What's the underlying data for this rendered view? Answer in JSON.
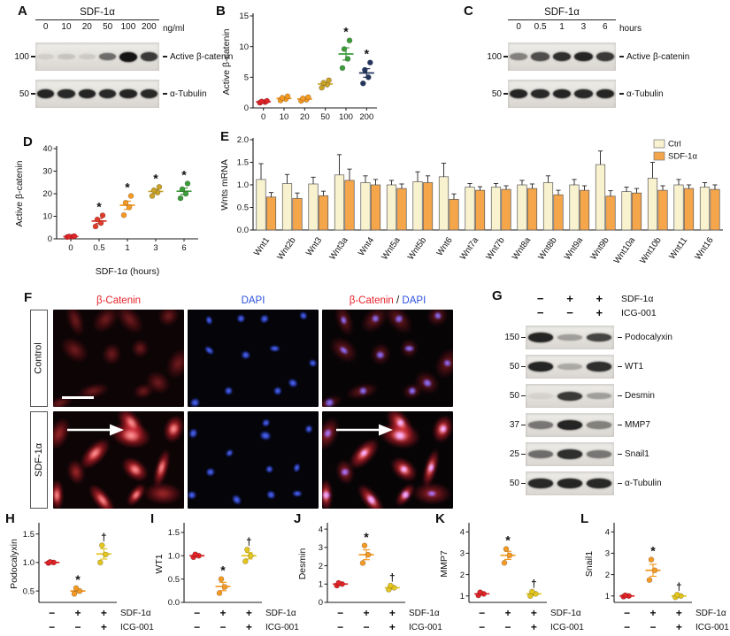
{
  "colors": {
    "label_red": "#e8232a",
    "label_blue": "#2b50e0",
    "ctrl_bar": "#f8f2cf",
    "sdf_bar": "#f5a54a"
  },
  "panel_a": {
    "label": "A",
    "title": "SDF-1α",
    "lanes": [
      "0",
      "10",
      "20",
      "50",
      "100",
      "200"
    ],
    "unit": "ng/ml",
    "rows": [
      {
        "marker": "100",
        "label": "Active β-catenin",
        "bands": [
          0.07,
          0.12,
          0.09,
          0.55,
          1.0,
          0.8
        ]
      },
      {
        "marker": "50",
        "label": "α-Tubulin",
        "bands": [
          0.9,
          0.88,
          0.9,
          0.88,
          0.9,
          0.88
        ]
      }
    ]
  },
  "panel_b": {
    "label": "B"
  },
  "panel_c": {
    "label": "C",
    "title": "SDF-1α",
    "lanes": [
      "0",
      "0.5",
      "1",
      "3",
      "6"
    ],
    "unit": "hours",
    "rows": [
      {
        "marker": "100",
        "label": "Active β-catenin",
        "bands": [
          0.45,
          0.7,
          0.85,
          0.9,
          0.8
        ]
      },
      {
        "marker": "50",
        "label": "α-Tubulin",
        "bands": [
          0.9,
          0.88,
          0.9,
          0.88,
          0.9
        ]
      }
    ]
  },
  "panel_d": {
    "label": "D"
  },
  "panel_e": {
    "label": "E"
  },
  "panel_f": {
    "label": "F",
    "headers": {
      "col1": "β-Catenin",
      "col2": "DAPI",
      "col3_1": "β-Catenin",
      "col3_sep": " / ",
      "col3_2": "DAPI"
    },
    "rows": [
      {
        "label": "Control"
      },
      {
        "label": "SDF-1α"
      }
    ]
  },
  "panel_g": {
    "label": "G",
    "conditions": [
      {
        "values": [
          "−",
          "+",
          "+"
        ],
        "label": "SDF-1α"
      },
      {
        "values": [
          "−",
          "−",
          "+"
        ],
        "label": "ICG-001"
      }
    ],
    "rows": [
      {
        "marker": "150",
        "label": "Podocalyxin",
        "bands": [
          0.9,
          0.3,
          0.75
        ]
      },
      {
        "marker": "50",
        "label": "WT1",
        "bands": [
          0.9,
          0.25,
          0.85
        ]
      },
      {
        "marker": "50",
        "label": "Desmin",
        "bands": [
          0.05,
          0.8,
          0.3
        ]
      },
      {
        "marker": "37",
        "label": "MMP7",
        "bands": [
          0.5,
          0.9,
          0.45
        ]
      },
      {
        "marker": "25",
        "label": "Snail1",
        "bands": [
          0.55,
          0.85,
          0.5
        ]
      },
      {
        "marker": "50",
        "label": "α-Tubulin",
        "bands": [
          0.88,
          0.9,
          0.88
        ]
      }
    ]
  },
  "panel_h": {
    "label": "H",
    "conditions": [
      {
        "values": [
          "−",
          "+",
          "+"
        ],
        "label": "SDF-1α"
      },
      {
        "values": [
          "−",
          "−",
          "+"
        ],
        "label": "ICG-001"
      }
    ]
  },
  "panel_i": {
    "label": "I",
    "conditions": [
      {
        "values": [
          "−",
          "+",
          "+"
        ],
        "label": "SDF-1α"
      },
      {
        "values": [
          "−",
          "−",
          "+"
        ],
        "label": "ICG-001"
      }
    ]
  },
  "panel_j": {
    "label": "J",
    "conditions": [
      {
        "values": [
          "−",
          "+",
          "+"
        ],
        "label": "SDF-1α"
      },
      {
        "values": [
          "−",
          "−",
          "+"
        ],
        "label": "ICG-001"
      }
    ]
  },
  "panel_k": {
    "label": "K",
    "conditions": [
      {
        "values": [
          "−",
          "+",
          "+"
        ],
        "label": "SDF-1α"
      },
      {
        "values": [
          "−",
          "−",
          "+"
        ],
        "label": "ICG-001"
      }
    ]
  },
  "panel_l": {
    "label": "L",
    "conditions": [
      {
        "values": [
          "−",
          "+",
          "+"
        ],
        "label": "SDF-1α"
      },
      {
        "values": [
          "−",
          "−",
          "+"
        ],
        "label": "ICG-001"
      }
    ]
  },
  "chart_data": [
    {
      "id": "B",
      "type": "scatter",
      "ylabel": "Active β-catenin",
      "ylim": [
        0,
        15
      ],
      "yticks": [
        0,
        5,
        10,
        15
      ],
      "ytick_labels": [
        "0",
        "5",
        "10",
        "15"
      ],
      "categories": [
        "0",
        "10",
        "20",
        "50",
        "100",
        "200"
      ],
      "groups": [
        {
          "color": "#e02427",
          "points": [
            0.85,
            0.95,
            1.05,
            1.15
          ],
          "mean": 1.0,
          "sem": 0.08,
          "sig": ""
        },
        {
          "color": "#f59a23",
          "points": [
            1.2,
            1.45,
            1.65,
            1.9
          ],
          "mean": 1.55,
          "sem": 0.15,
          "sig": ""
        },
        {
          "color": "#f59a23",
          "points": [
            1.15,
            1.35,
            1.55,
            1.75
          ],
          "mean": 1.45,
          "sem": 0.13,
          "sig": ""
        },
        {
          "color": "#c9a227",
          "points": [
            3.3,
            3.8,
            4.1,
            4.5
          ],
          "mean": 3.9,
          "sem": 0.26,
          "sig": ""
        },
        {
          "color": "#3d9c3a",
          "points": [
            6.5,
            8.0,
            9.6,
            11.0
          ],
          "mean": 8.8,
          "sem": 1.0,
          "sig": "*"
        },
        {
          "color": "#24365e",
          "points": [
            4.0,
            5.0,
            6.2,
            7.4
          ],
          "mean": 5.7,
          "sem": 0.7,
          "sig": "*"
        }
      ]
    },
    {
      "id": "D",
      "type": "scatter",
      "ylabel": "Active β-catenin",
      "xlabel": "SDF-1α (hours)",
      "ylim": [
        0,
        40
      ],
      "yticks": [
        0,
        10,
        20,
        30,
        40
      ],
      "ytick_labels": [
        "0",
        "10",
        "20",
        "30",
        "40"
      ],
      "categories": [
        "0",
        "0.5",
        "1",
        "3",
        "6"
      ],
      "groups": [
        {
          "color": "#e02427",
          "points": [
            0.8,
            0.95,
            1.05,
            1.2
          ],
          "mean": 1.0,
          "sem": 0.09,
          "sig": ""
        },
        {
          "color": "#e03a2a",
          "points": [
            5.5,
            7.0,
            8.6,
            10.4
          ],
          "mean": 7.9,
          "sem": 1.1,
          "sig": "*"
        },
        {
          "color": "#f59a23",
          "points": [
            10.5,
            14.0,
            16.0,
            19.0
          ],
          "mean": 14.9,
          "sem": 1.8,
          "sig": "*"
        },
        {
          "color": "#c9a227",
          "points": [
            19.0,
            20.5,
            21.5,
            23.0
          ],
          "mean": 21.0,
          "sem": 0.9,
          "sig": "*"
        },
        {
          "color": "#3d9c3a",
          "points": [
            18.0,
            20.0,
            22.0,
            24.5
          ],
          "mean": 21.1,
          "sem": 1.4,
          "sig": "*"
        }
      ]
    },
    {
      "id": "E",
      "type": "bar",
      "ylabel": "Wnts mRNA",
      "ylim": [
        0,
        2
      ],
      "yticks": [
        0,
        0.5,
        1,
        1.5,
        2
      ],
      "ytick_labels": [
        "0.0",
        "0.5",
        "1.0",
        "1.5",
        "2.0"
      ],
      "categories": [
        "Wnt1",
        "Wnt2b",
        "Wnt3",
        "Wnt3a",
        "Wnt4",
        "Wnt5a",
        "Wnt5b",
        "Wnt6",
        "Wnt7a",
        "Wnt7b",
        "Wnt8a",
        "Wnt8b",
        "Wnt9a",
        "Wnt9b",
        "Wnt10a",
        "Wnt10b",
        "Wnt11",
        "Wnt16"
      ],
      "legend_pos": "top-right",
      "series": [
        {
          "name": "Ctrl",
          "color": "#f8f2cf",
          "values": [
            1.12,
            1.03,
            1.02,
            1.22,
            1.05,
            1.0,
            1.07,
            1.18,
            0.95,
            0.95,
            1.0,
            1.05,
            1.0,
            1.45,
            0.85,
            1.15,
            1.0,
            0.95
          ],
          "errors": [
            0.35,
            0.2,
            0.15,
            0.45,
            0.15,
            0.1,
            0.22,
            0.3,
            0.08,
            0.08,
            0.1,
            0.15,
            0.12,
            0.3,
            0.1,
            0.35,
            0.12,
            0.1
          ]
        },
        {
          "name": "SDF-1α",
          "color": "#f5a54a",
          "values": [
            0.73,
            0.7,
            0.76,
            1.1,
            1.0,
            0.92,
            1.05,
            0.68,
            0.88,
            0.9,
            0.92,
            0.78,
            0.88,
            0.75,
            0.82,
            0.88,
            0.92,
            0.9
          ],
          "errors": [
            0.1,
            0.12,
            0.1,
            0.25,
            0.12,
            0.1,
            0.15,
            0.12,
            0.08,
            0.08,
            0.1,
            0.1,
            0.1,
            0.12,
            0.1,
            0.1,
            0.08,
            0.1
          ]
        }
      ]
    },
    {
      "id": "H",
      "type": "scatter",
      "ylabel": "Podocalyxin",
      "ylim": [
        0.3,
        1.65
      ],
      "yticks": [
        0.5,
        1.0,
        1.5
      ],
      "ytick_labels": [
        "0.5",
        "1.0",
        "1.5"
      ],
      "groups": [
        {
          "color": "#e02427",
          "points": [
            0.99,
            1.0,
            1.01
          ],
          "mean": 1.0,
          "sem": 0.02,
          "sig": ""
        },
        {
          "color": "#f59a23",
          "points": [
            0.45,
            0.5,
            0.55
          ],
          "mean": 0.5,
          "sem": 0.03,
          "sig": "*"
        },
        {
          "color": "#e3c51f",
          "points": [
            1.0,
            1.14,
            1.3
          ],
          "mean": 1.15,
          "sem": 0.09,
          "sig": "†"
        }
      ]
    },
    {
      "id": "I",
      "type": "scatter",
      "ylabel": "WT1",
      "ylim": [
        0,
        1.65
      ],
      "yticks": [
        0,
        0.5,
        1.0,
        1.5
      ],
      "ytick_labels": [
        "0.0",
        "0.5",
        "1.0",
        "1.5"
      ],
      "groups": [
        {
          "color": "#e02427",
          "points": [
            0.97,
            1.0,
            1.03
          ],
          "mean": 1.0,
          "sem": 0.02,
          "sig": ""
        },
        {
          "color": "#f59a23",
          "points": [
            0.2,
            0.33,
            0.5
          ],
          "mean": 0.34,
          "sem": 0.09,
          "sig": "*"
        },
        {
          "color": "#e3c51f",
          "points": [
            0.88,
            1.0,
            1.13
          ],
          "mean": 1.0,
          "sem": 0.07,
          "sig": "†"
        }
      ]
    },
    {
      "id": "J",
      "type": "scatter",
      "ylabel": "Desmin",
      "ylim": [
        0,
        4.2
      ],
      "yticks": [
        0,
        1,
        2,
        3,
        4
      ],
      "ytick_labels": [
        "0",
        "1",
        "2",
        "3",
        "4"
      ],
      "groups": [
        {
          "color": "#e02427",
          "points": [
            0.92,
            1.0,
            1.06
          ],
          "mean": 1.0,
          "sem": 0.04,
          "sig": ""
        },
        {
          "color": "#f59a23",
          "points": [
            2.15,
            2.6,
            3.1
          ],
          "mean": 2.6,
          "sem": 0.27,
          "sig": "*"
        },
        {
          "color": "#e3c51f",
          "points": [
            0.7,
            0.8,
            0.92
          ],
          "mean": 0.8,
          "sem": 0.07,
          "sig": "†"
        }
      ]
    },
    {
      "id": "K",
      "type": "scatter",
      "ylabel": "MMP7",
      "ylim": [
        0.7,
        4.3
      ],
      "yticks": [
        1,
        2,
        3,
        4
      ],
      "ytick_labels": [
        "1",
        "2",
        "3",
        "4"
      ],
      "groups": [
        {
          "color": "#e02427",
          "points": [
            1.03,
            1.1,
            1.17
          ],
          "mean": 1.1,
          "sem": 0.04,
          "sig": ""
        },
        {
          "color": "#f59a23",
          "points": [
            2.55,
            2.9,
            3.2
          ],
          "mean": 2.9,
          "sem": 0.19,
          "sig": "*"
        },
        {
          "color": "#e3c51f",
          "points": [
            1.0,
            1.1,
            1.2
          ],
          "mean": 1.1,
          "sem": 0.06,
          "sig": "†"
        }
      ]
    },
    {
      "id": "L",
      "type": "scatter",
      "ylabel": "Snail1",
      "ylim": [
        0.7,
        4.3
      ],
      "yticks": [
        1,
        2,
        3,
        4
      ],
      "ytick_labels": [
        "1",
        "2",
        "3",
        "4"
      ],
      "groups": [
        {
          "color": "#e02427",
          "points": [
            0.97,
            1.0,
            1.03
          ],
          "mean": 1.0,
          "sem": 0.02,
          "sig": ""
        },
        {
          "color": "#f59a23",
          "points": [
            1.75,
            2.2,
            2.7
          ],
          "mean": 2.2,
          "sem": 0.28,
          "sig": "*"
        },
        {
          "color": "#e3c51f",
          "points": [
            0.94,
            1.0,
            1.06
          ],
          "mean": 1.0,
          "sem": 0.04,
          "sig": "†"
        }
      ]
    }
  ]
}
